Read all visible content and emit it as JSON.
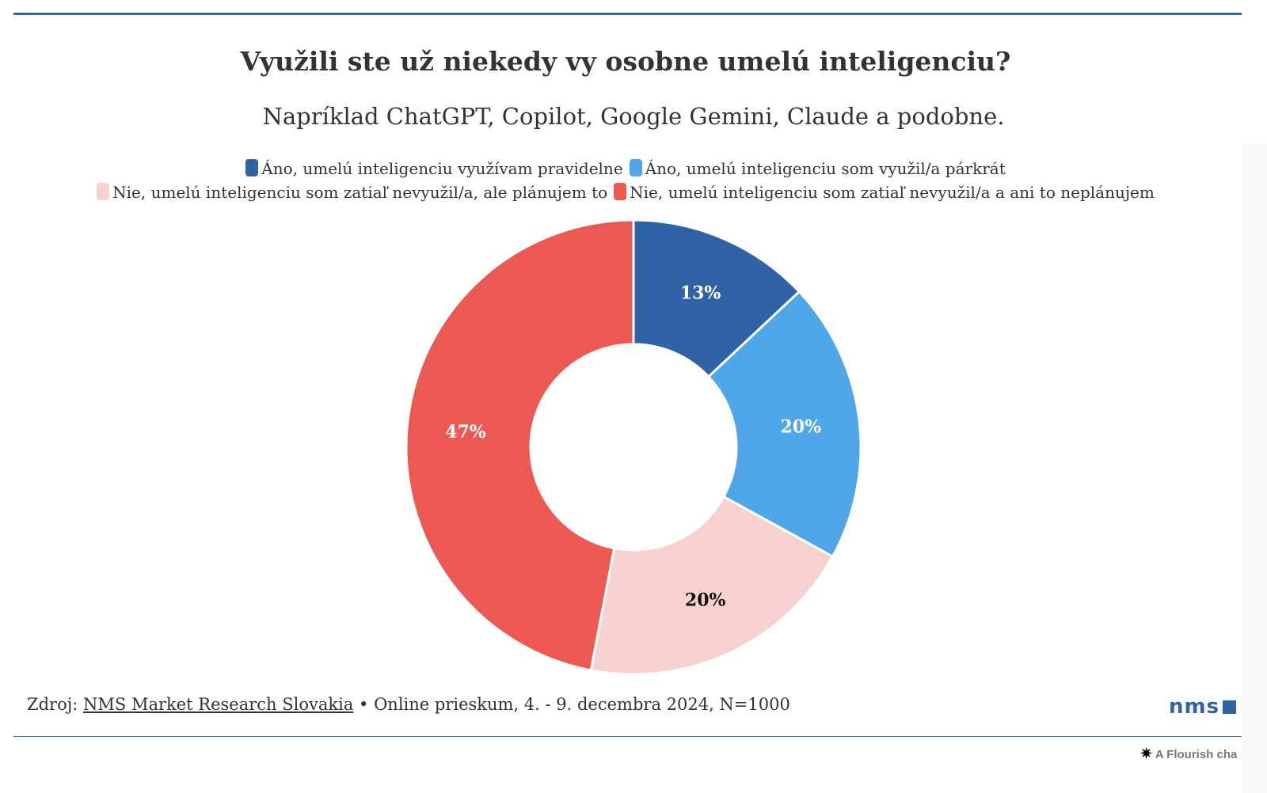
{
  "title": "Využili ste už niekedy vy osobne umelú inteligenciu?",
  "subtitle": "Napríklad ChatGPT, Copilot, Google Gemini, Claude a podobne.",
  "chart_data": {
    "type": "pie",
    "donut": true,
    "start": "top, clockwise",
    "legend_position": "top",
    "categories": [
      "Áno, umelú inteligenciu využívam pravidelne",
      "Áno, umelú inteligenciu som využil/a párkrát",
      "Nie, umelú inteligenciu som zatiaľ nevyužil/a, ale plánujem to",
      "Nie, umelú inteligenciu som zatiaľ nevyužil/a a ani to neplánujem"
    ],
    "values": [
      13,
      20,
      20,
      47
    ],
    "labels": [
      "13%",
      "20%",
      "20%",
      "47%"
    ],
    "colors": [
      "#3063a6",
      "#4fa6e8",
      "#f7d1d0",
      "#ec5953"
    ],
    "label_colors": [
      "#ffffff",
      "#ffffff",
      "#111111",
      "#ffffff"
    ]
  },
  "footer": {
    "source_prefix": "Zdroj:",
    "source_link": "NMS Market Research Slovakia",
    "source_suffix": "• Online prieskum, 4. - 9. decembra 2024, N=1000",
    "logo": "nms",
    "flourish": "A Flourish cha"
  }
}
